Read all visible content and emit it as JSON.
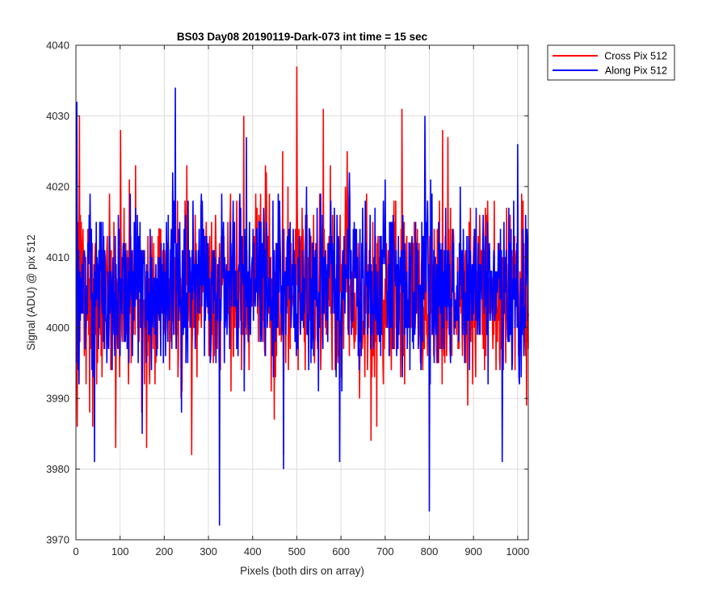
{
  "chart_data": {
    "type": "line",
    "title": "BS03 Day08 20190119-Dark-073 int time = 15 sec",
    "xlabel": "Pixels (both dirs on array)",
    "ylabel": "Signal (ADU) @ pix 512",
    "xlim": [
      0,
      1024
    ],
    "ylim": [
      3970,
      4040
    ],
    "xticks": [
      0,
      100,
      200,
      300,
      400,
      500,
      600,
      700,
      800,
      900,
      1000
    ],
    "yticks": [
      3970,
      3980,
      3990,
      4000,
      4010,
      4020,
      4030,
      4040
    ],
    "grid": true,
    "legend_placement": "outside-top-right",
    "series": [
      {
        "name": "Cross Pix 512",
        "color": "#ff0000",
        "x_start": 1,
        "x_end": 1024,
        "baseline": 4005,
        "noise_sigma": 6.5,
        "notable_points": [
          {
            "x": 3,
            "y": 3986
          },
          {
            "x": 8,
            "y": 4030
          },
          {
            "x": 90,
            "y": 3983
          },
          {
            "x": 160,
            "y": 3983
          },
          {
            "x": 262,
            "y": 3982
          },
          {
            "x": 380,
            "y": 4030
          },
          {
            "x": 470,
            "y": 3982
          },
          {
            "x": 500,
            "y": 4037
          },
          {
            "x": 560,
            "y": 4031
          },
          {
            "x": 668,
            "y": 3984
          },
          {
            "x": 738,
            "y": 4031
          },
          {
            "x": 830,
            "y": 4028
          },
          {
            "x": 1020,
            "y": 3989
          }
        ]
      },
      {
        "name": "Along Pix 512",
        "color": "#0000ff",
        "x_start": 1,
        "x_end": 1024,
        "baseline": 4006,
        "noise_sigma": 6.0,
        "notable_points": [
          {
            "x": 2,
            "y": 4032
          },
          {
            "x": 42,
            "y": 3981
          },
          {
            "x": 150,
            "y": 3985
          },
          {
            "x": 225,
            "y": 4034
          },
          {
            "x": 325,
            "y": 3972
          },
          {
            "x": 470,
            "y": 3980
          },
          {
            "x": 597,
            "y": 3981
          },
          {
            "x": 790,
            "y": 4030
          },
          {
            "x": 800,
            "y": 3974
          },
          {
            "x": 965,
            "y": 3981
          },
          {
            "x": 1000,
            "y": 4026
          }
        ]
      }
    ],
    "colors": {
      "axes": "#262626",
      "grid": "#dcdcdc",
      "background": "#ffffff"
    }
  }
}
